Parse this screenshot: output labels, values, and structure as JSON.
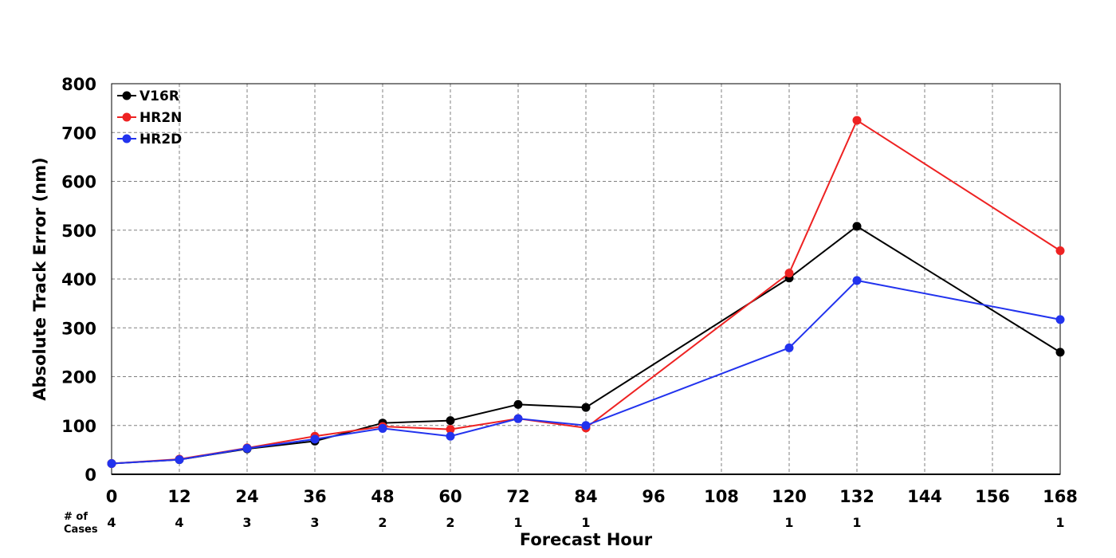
{
  "chart_data": {
    "type": "line",
    "xlabel": "Forecast Hour",
    "ylabel": "Absolute Track Error (nm)",
    "xlim": [
      0,
      168
    ],
    "ylim": [
      0,
      800
    ],
    "xticks": [
      0,
      12,
      24,
      36,
      48,
      60,
      72,
      84,
      96,
      108,
      120,
      132,
      144,
      156,
      168
    ],
    "yticks": [
      0,
      100,
      200,
      300,
      400,
      500,
      600,
      700,
      800
    ],
    "grid": true,
    "legend_position": "top-left",
    "cases_label_line1": "# of",
    "cases_label_line2": "Cases",
    "cases": [
      {
        "x": 0,
        "n": "4"
      },
      {
        "x": 12,
        "n": "4"
      },
      {
        "x": 24,
        "n": "3"
      },
      {
        "x": 36,
        "n": "3"
      },
      {
        "x": 48,
        "n": "2"
      },
      {
        "x": 60,
        "n": "2"
      },
      {
        "x": 72,
        "n": "1"
      },
      {
        "x": 84,
        "n": "1"
      },
      {
        "x": 120,
        "n": "1"
      },
      {
        "x": 132,
        "n": "1"
      },
      {
        "x": 168,
        "n": "1"
      }
    ],
    "x": [
      0,
      12,
      24,
      36,
      48,
      60,
      72,
      84,
      120,
      132,
      168
    ],
    "series": [
      {
        "name": "V16R",
        "color": "#000000",
        "values": [
          22,
          30,
          52,
          68,
          105,
          110,
          143,
          137,
          402,
          508,
          250
        ]
      },
      {
        "name": "HR2N",
        "color": "#ee2222",
        "values": [
          22,
          31,
          54,
          78,
          98,
          92,
          114,
          95,
          412,
          725,
          458
        ]
      },
      {
        "name": "HR2D",
        "color": "#2233ee",
        "values": [
          22,
          30,
          53,
          72,
          94,
          78,
          114,
          100,
          259,
          397,
          317
        ]
      }
    ]
  }
}
